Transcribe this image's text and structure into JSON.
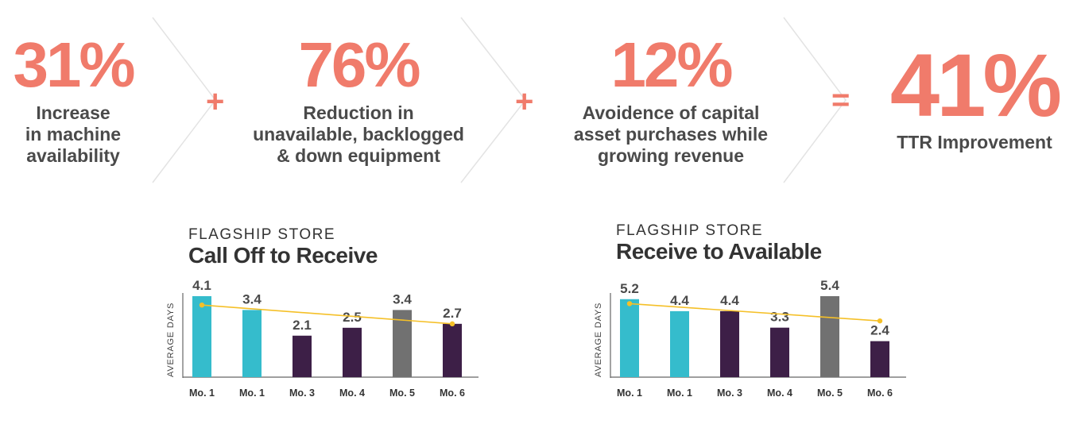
{
  "stats": [
    {
      "value": "31%",
      "label": "Increase\nin machine\navailability"
    },
    {
      "value": "76%",
      "label": "Reduction in\nunavailable, backlogged\n& down equipment"
    },
    {
      "value": "12%",
      "label": "Avoidence of capital\nasset purchases while\ngrowing revenue"
    },
    {
      "value": "41%",
      "label": "TTR Improvement"
    }
  ],
  "operators": [
    "+",
    "+",
    "="
  ],
  "colors": {
    "accent": "#f07b6b",
    "teal": "#35bccc",
    "purple": "#3d1f47",
    "gray": "#717171",
    "trend": "#f5c028",
    "text": "#4a4a4a"
  },
  "chart_data": [
    {
      "type": "bar",
      "kicker": "FLAGSHIP STORE",
      "title": "Call Off to Receive",
      "ylabel": "AVERAGE DAYS",
      "xlabel": "",
      "categories": [
        "Mo. 1",
        "Mo. 1",
        "Mo. 3",
        "Mo. 4",
        "Mo. 5",
        "Mo. 6"
      ],
      "values": [
        4.1,
        3.4,
        2.1,
        2.5,
        3.4,
        2.7
      ],
      "bar_colors": [
        "teal",
        "teal",
        "purple",
        "purple",
        "gray",
        "purple"
      ],
      "ylim": [
        0,
        4.1
      ],
      "trend": {
        "from": 3.65,
        "to": 2.7
      }
    },
    {
      "type": "bar",
      "kicker": "FLAGSHIP STORE",
      "title": "Receive to Available",
      "ylabel": "AVERAGE DAYS",
      "xlabel": "",
      "categories": [
        "Mo. 1",
        "Mo. 1",
        "Mo. 3",
        "Mo. 4",
        "Mo. 5",
        "Mo. 6"
      ],
      "values": [
        5.2,
        4.4,
        4.4,
        3.3,
        5.4,
        2.4
      ],
      "bar_colors": [
        "teal",
        "teal",
        "purple",
        "purple",
        "gray",
        "purple"
      ],
      "ylim": [
        0,
        5.4
      ],
      "trend": {
        "from": 4.9,
        "to": 3.75
      }
    }
  ]
}
